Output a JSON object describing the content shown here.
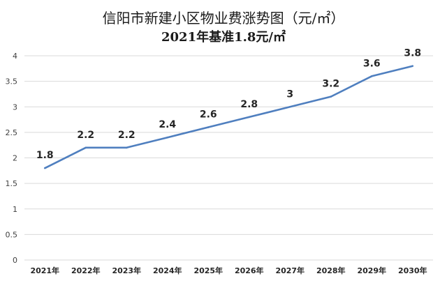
{
  "chart_data": {
    "type": "line",
    "title": "信阳市新建小区物业费涨势图（元/㎡）",
    "subtitle": "2021年基准1.8元/㎡",
    "categories": [
      "2021年",
      "2022年",
      "2023年",
      "2024年",
      "2025年",
      "2026年",
      "2027年",
      "2028年",
      "2029年",
      "2030年"
    ],
    "series": [
      {
        "values": [
          1.8,
          2.2,
          2.2,
          2.4,
          2.6,
          2.8,
          3,
          3.2,
          3.6,
          3.8
        ]
      }
    ],
    "data_labels": [
      "1.8",
      "2.2",
      "2.2",
      "2.4",
      "2.6",
      "2.8",
      "3",
      "3.2",
      "3.6",
      "3.8"
    ],
    "yticks": [
      "0",
      "0.5",
      "1",
      "1.5",
      "2",
      "2.5",
      "3",
      "3.5",
      "4"
    ],
    "ylim": [
      0,
      4
    ],
    "grid": true,
    "line_color": "#4f7fbf"
  }
}
